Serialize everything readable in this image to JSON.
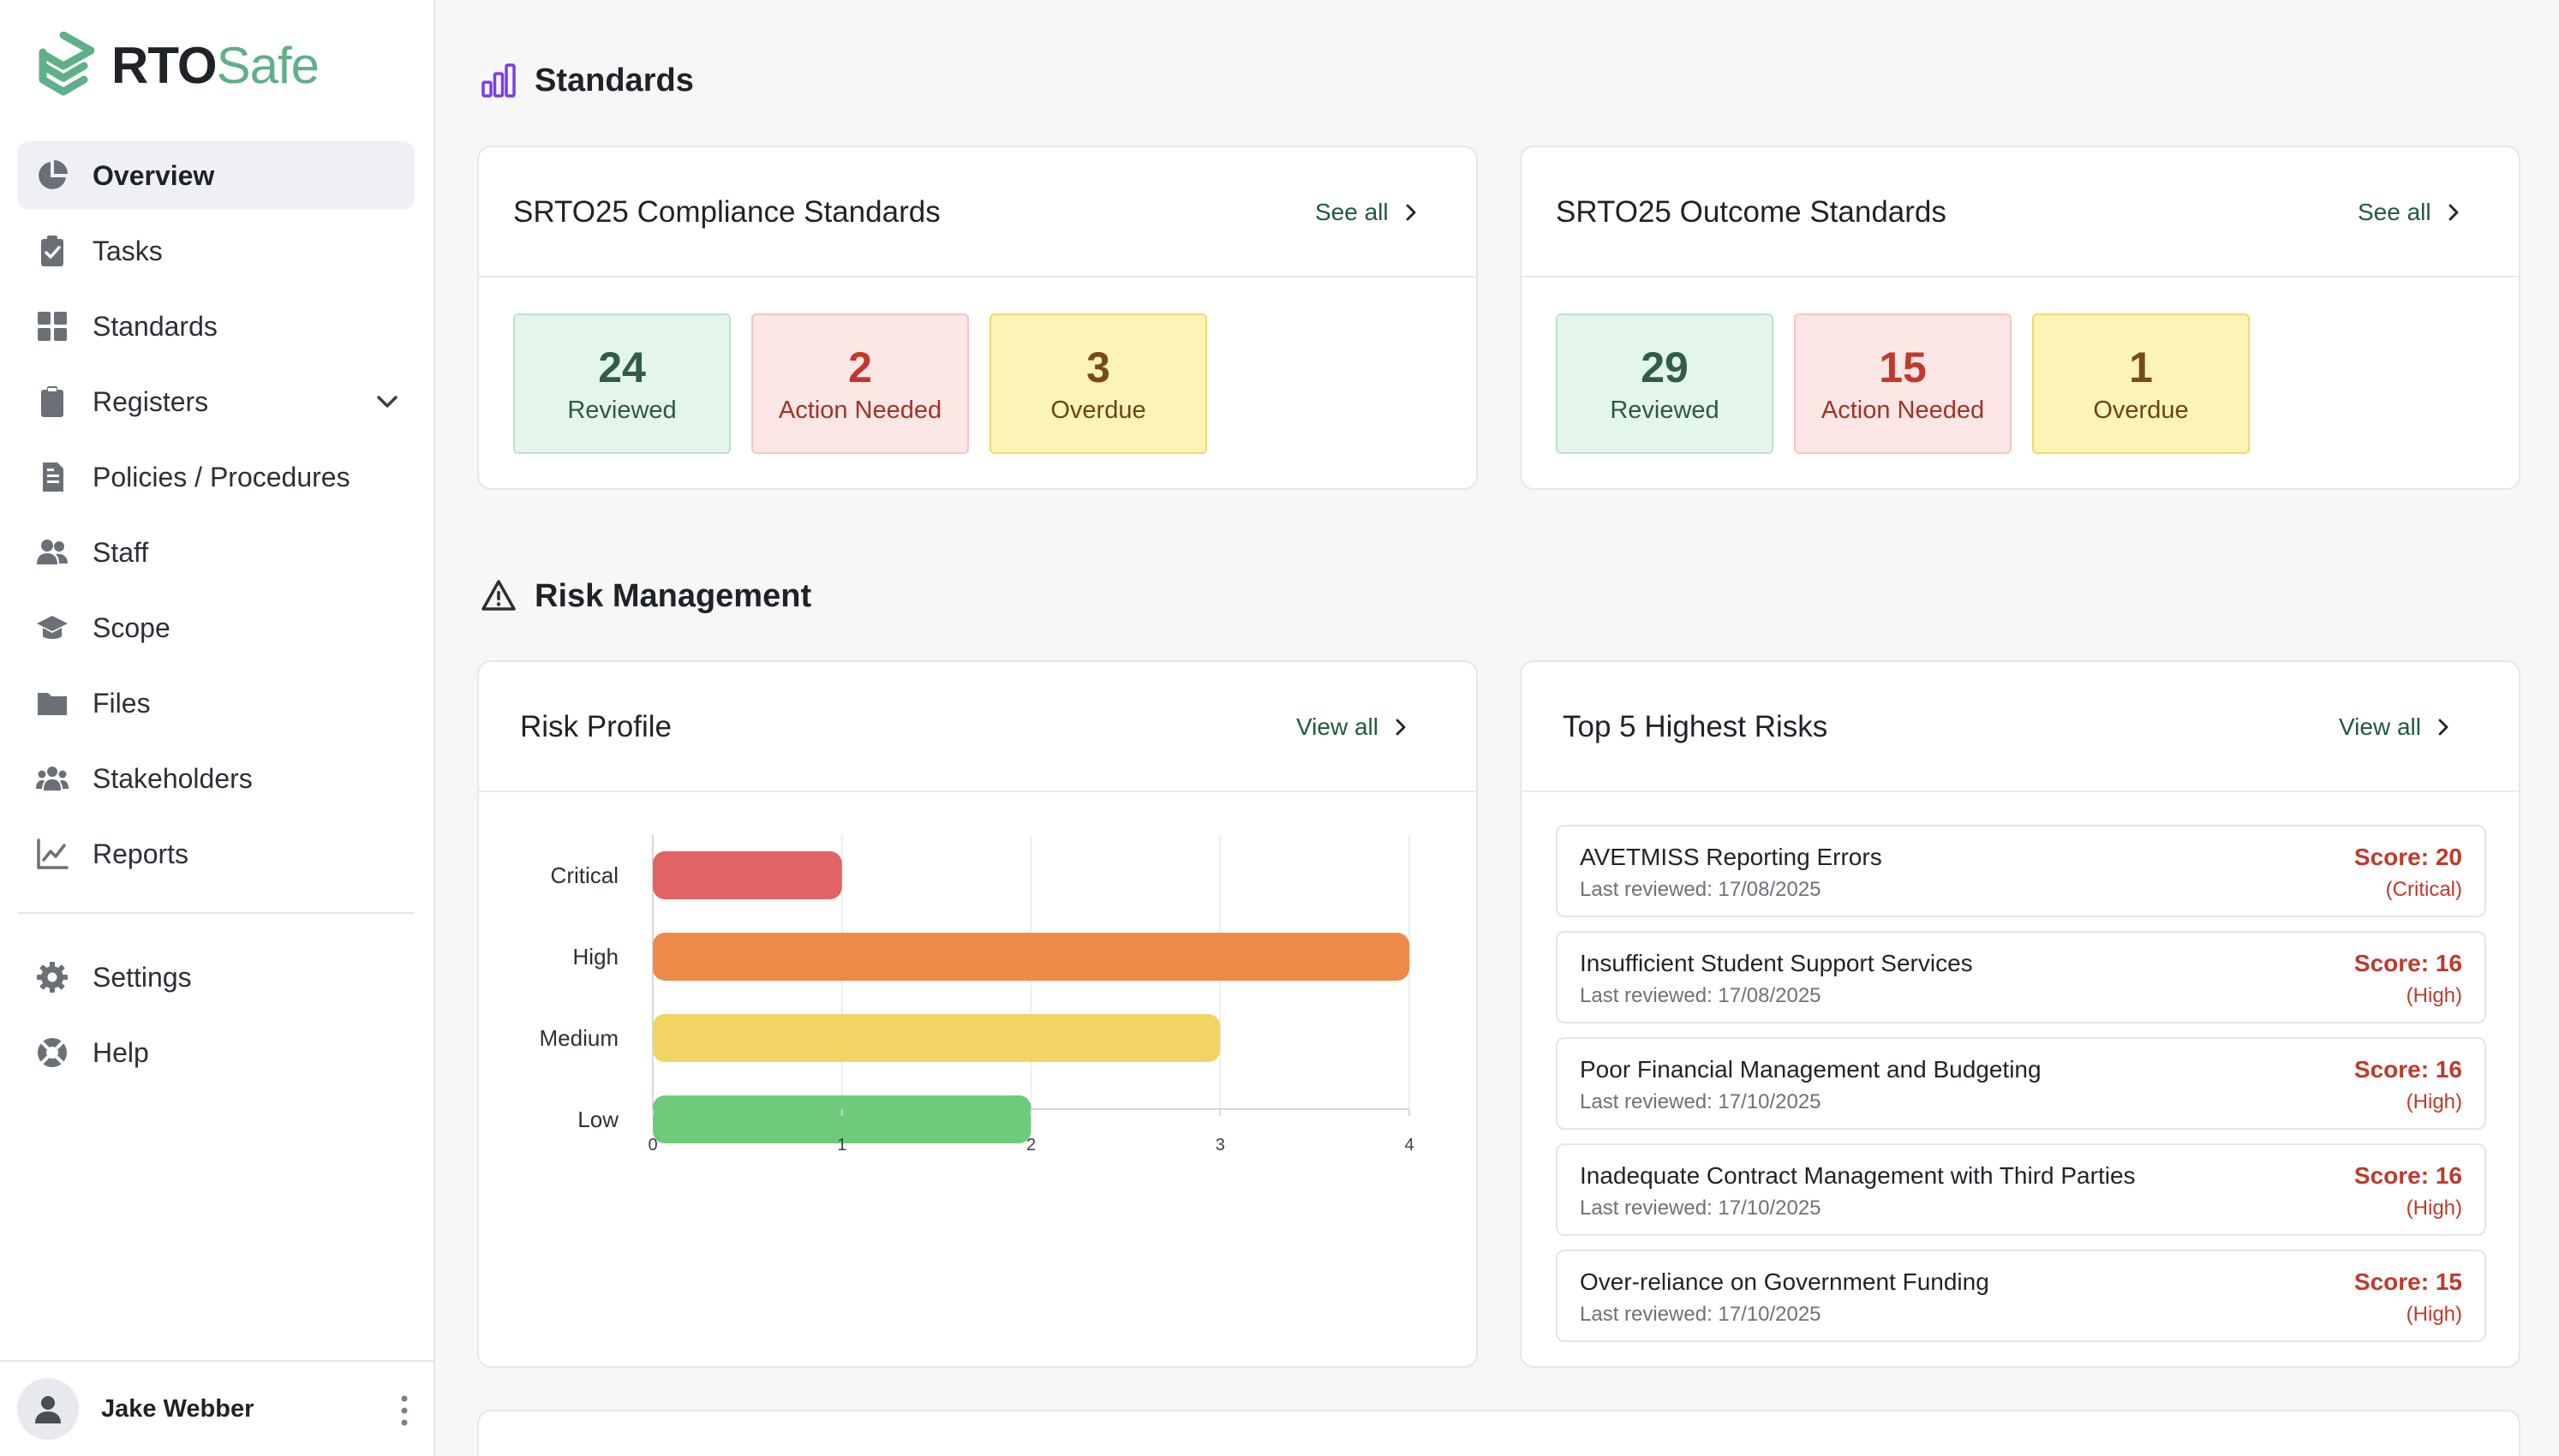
{
  "brand": {
    "rto": "RTO",
    "safe": "Safe"
  },
  "sidebar": {
    "items": [
      {
        "label": "Overview",
        "icon": "pie-chart-icon"
      },
      {
        "label": "Tasks",
        "icon": "clipboard-check-icon"
      },
      {
        "label": "Standards",
        "icon": "grid-icon"
      },
      {
        "label": "Registers",
        "icon": "clipboard-icon"
      },
      {
        "label": "Policies / Procedures",
        "icon": "document-icon"
      },
      {
        "label": "Staff",
        "icon": "users-icon"
      },
      {
        "label": "Scope",
        "icon": "graduation-cap-icon"
      },
      {
        "label": "Files",
        "icon": "folder-icon"
      },
      {
        "label": "Stakeholders",
        "icon": "user-group-icon"
      },
      {
        "label": "Reports",
        "icon": "line-chart-icon"
      }
    ],
    "bottom_items": [
      {
        "label": "Settings",
        "icon": "gear-icon"
      },
      {
        "label": "Help",
        "icon": "lifebuoy-icon"
      }
    ],
    "active": "Overview"
  },
  "user": {
    "name": "Jake Webber"
  },
  "standards": {
    "title": "Standards",
    "compliance": {
      "title": "SRTO25 Compliance Standards",
      "link": "See all",
      "stats": [
        {
          "value": "24",
          "label": "Reviewed"
        },
        {
          "value": "2",
          "label": "Action Needed"
        },
        {
          "value": "3",
          "label": "Overdue"
        }
      ]
    },
    "outcome": {
      "title": "SRTO25 Outcome Standards",
      "link": "See all",
      "stats": [
        {
          "value": "29",
          "label": "Reviewed"
        },
        {
          "value": "15",
          "label": "Action Needed"
        },
        {
          "value": "1",
          "label": "Overdue"
        }
      ]
    }
  },
  "risk": {
    "title": "Risk Management",
    "profile": {
      "title": "Risk Profile",
      "link": "View all"
    },
    "top5": {
      "title": "Top 5 Highest Risks",
      "link": "View all",
      "items": [
        {
          "name": "AVETMISS Reporting Errors",
          "reviewed": "Last reviewed: 17/08/2025",
          "score": "Score: 20",
          "level": "(Critical)"
        },
        {
          "name": "Insufficient Student Support Services",
          "reviewed": "Last reviewed: 17/08/2025",
          "score": "Score: 16",
          "level": "(High)"
        },
        {
          "name": "Poor Financial Management and Budgeting",
          "reviewed": "Last reviewed: 17/10/2025",
          "score": "Score: 16",
          "level": "(High)"
        },
        {
          "name": "Inadequate Contract Management with Third Parties",
          "reviewed": "Last reviewed: 17/10/2025",
          "score": "Score: 16",
          "level": "(High)"
        },
        {
          "name": "Over-reliance on Government Funding",
          "reviewed": "Last reviewed: 17/10/2025",
          "score": "Score: 15",
          "level": "(High)"
        }
      ]
    }
  },
  "chart_data": {
    "type": "bar",
    "orientation": "horizontal",
    "categories": [
      "Critical",
      "High",
      "Medium",
      "Low"
    ],
    "values": [
      1,
      4,
      3,
      2
    ],
    "colors": [
      "#e26363",
      "#ed8a4a",
      "#f2d465",
      "#6dcb7a"
    ],
    "xlim": [
      0,
      4
    ],
    "xticks": [
      "0",
      "1",
      "2",
      "3",
      "4"
    ],
    "grid": true
  }
}
